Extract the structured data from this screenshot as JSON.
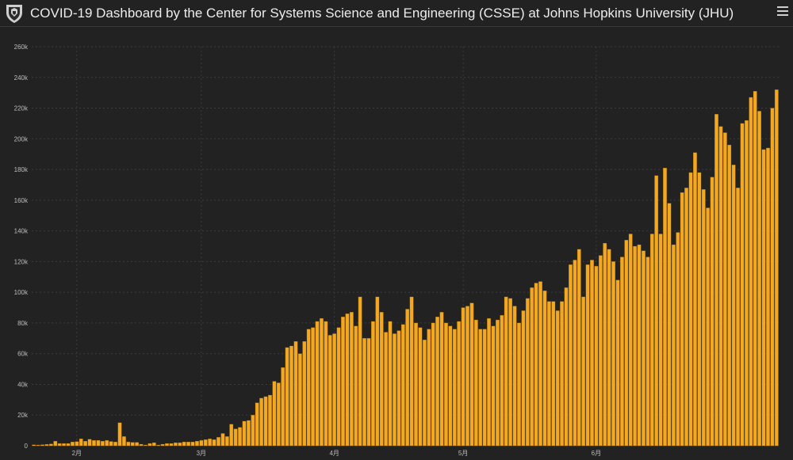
{
  "header": {
    "title": "COVID-19 Dashboard by the Center for Systems Science and Engineering (CSSE) at Johns Hopkins University (JHU)",
    "logo_icon": "jhu-shield-icon",
    "menu_icon": "hamburger-menu-icon"
  },
  "colors": {
    "background": "#222222",
    "bar": "#f3a81f",
    "bar_stroke": "#9a6a10",
    "grid": "#3c3c3c",
    "axis_text": "#bdbdbd"
  },
  "chart_data": {
    "type": "bar",
    "title": "",
    "xlabel": "",
    "ylabel": "",
    "ylim": [
      0,
      260000
    ],
    "y_ticks": [
      0,
      20000,
      40000,
      60000,
      80000,
      100000,
      120000,
      140000,
      160000,
      180000,
      200000,
      220000,
      240000,
      260000
    ],
    "y_tick_labels": [
      "0",
      "20k",
      "40k",
      "60k",
      "80k",
      "100k",
      "120k",
      "140k",
      "160k",
      "180k",
      "200k",
      "220k",
      "240k",
      "260k"
    ],
    "x_tick_labels": [
      {
        "label": "2月",
        "index": 10
      },
      {
        "label": "3月",
        "index": 39
      },
      {
        "label": "4月",
        "index": 70
      },
      {
        "label": "5月",
        "index": 100
      },
      {
        "label": "6月",
        "index": 131
      }
    ],
    "grid": true,
    "values": [
      600,
      500,
      700,
      900,
      1200,
      3000,
      1500,
      1500,
      1500,
      2500,
      2700,
      4500,
      3000,
      4200,
      3500,
      3500,
      3000,
      3500,
      2800,
      2500,
      15000,
      6000,
      2500,
      2200,
      2200,
      1000,
      500,
      1500,
      2000,
      500,
      1000,
      1500,
      1500,
      2000,
      2000,
      2500,
      2500,
      2500,
      3000,
      3500,
      4000,
      4500,
      4000,
      5500,
      8000,
      6000,
      14000,
      11000,
      12000,
      16000,
      16500,
      20000,
      28000,
      31000,
      32000,
      33000,
      42000,
      41000,
      51000,
      64000,
      65000,
      68000,
      60000,
      68000,
      76000,
      77000,
      81000,
      83000,
      81000,
      72000,
      73000,
      77000,
      84000,
      86000,
      87000,
      78000,
      97000,
      70000,
      70000,
      81000,
      97000,
      87000,
      74000,
      81000,
      73000,
      75000,
      79000,
      89000,
      97000,
      80000,
      77000,
      69000,
      76000,
      80000,
      84000,
      87000,
      80000,
      78000,
      76000,
      81000,
      90000,
      91000,
      93000,
      82000,
      76000,
      76000,
      83000,
      78000,
      82000,
      85000,
      97000,
      96000,
      91000,
      80000,
      88000,
      96000,
      103000,
      106000,
      107000,
      101000,
      94000,
      94000,
      88000,
      94000,
      103000,
      118000,
      121000,
      128000,
      97000,
      118000,
      121000,
      117000,
      124000,
      132000,
      128000,
      120000,
      108000,
      123000,
      134000,
      138000,
      130000,
      131000,
      127000,
      123000,
      138000,
      176000,
      138000,
      181000,
      158000,
      131000,
      139000,
      165000,
      168000,
      178000,
      191000,
      178000,
      167000,
      155000,
      175000,
      216000,
      208000,
      204000,
      196000,
      183000,
      168000,
      210000,
      212000,
      227000,
      231000,
      218000,
      193000,
      194000,
      220000,
      232000
    ]
  }
}
